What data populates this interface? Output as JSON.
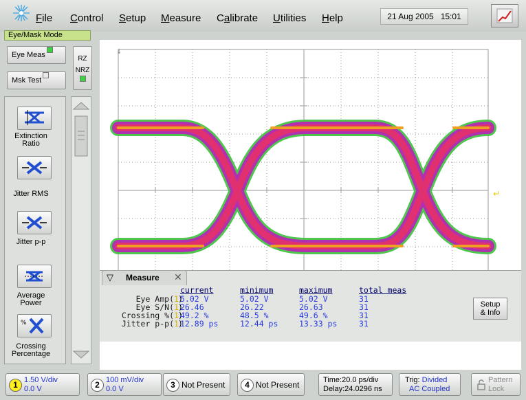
{
  "menu": {
    "items": [
      "File",
      "Control",
      "Setup",
      "Measure",
      "Calibrate",
      "Utilities",
      "Help"
    ],
    "date": "21 Aug 2005",
    "time": "15:01"
  },
  "mode_label": "Eye/Mask Mode",
  "left_buttons": {
    "eye_meas": "Eye Meas",
    "msk_test": "Msk Test",
    "rz": "RZ",
    "nrz": "NRZ"
  },
  "measurements_toolbar": [
    {
      "label_line1": "Extinction",
      "label_line2": "Ratio",
      "icon": "extinction-ratio-icon"
    },
    {
      "label_line1": "Jitter RMS",
      "label_line2": "",
      "icon": "jitter-rms-icon"
    },
    {
      "label_line1": "Jitter p-p",
      "label_line2": "",
      "icon": "jitter-pp-icon"
    },
    {
      "label_line1": "Average",
      "label_line2": "Power",
      "icon": "average-power-icon"
    },
    {
      "label_line1": "Crossing",
      "label_line2": "Percentage",
      "icon": "crossing-percentage-icon"
    }
  ],
  "measure_panel": {
    "tab": "Measure",
    "headers": {
      "current": "current",
      "minimum": "minimum",
      "maximum": "maximum",
      "total": "total meas"
    },
    "rows": [
      {
        "label": "Eye Amp(",
        "current": "5.02 V",
        "minimum": "5.02 V",
        "maximum": "5.02 V",
        "total": "31"
      },
      {
        "label": "Eye S/N(",
        "current": "26.46",
        "minimum": "26.22",
        "maximum": "26.63",
        "total": "31"
      },
      {
        "label": "Crossing %(",
        "current": "49.2 %",
        "minimum": "48.5 %",
        "maximum": "49.6 %",
        "total": "31"
      },
      {
        "label": "Jitter p-p(",
        "current": "12.89 ps",
        "minimum": "12.44 ps",
        "maximum": "13.33 ps",
        "total": "31"
      }
    ],
    "setup_line1": "Setup",
    "setup_line2": "& Info"
  },
  "bottom": {
    "ch1": {
      "num": "1",
      "scale": "1.50 V/div",
      "offset": "0.0 V"
    },
    "ch2": {
      "num": "2",
      "scale": "100 mV/div",
      "offset": "0.0 V"
    },
    "ch3": {
      "num": "3",
      "text": "Not Present"
    },
    "ch4": {
      "num": "4",
      "text": "Not Present"
    },
    "timebase": {
      "time": "Time:20.0 ps/div",
      "delay": "Delay:24.0296 ns"
    },
    "trigger": {
      "label": "Trig:",
      "source": "Divided",
      "coupling": "AC Coupled"
    },
    "pattern": {
      "line1": "Pattern",
      "line2": "Lock"
    }
  },
  "colors": {
    "accent": "#2a3ce0",
    "mode_label": "#c8e28c",
    "ch1": "#ffee20",
    "eye_outer": "#3cc23c",
    "eye_mid": "#d03080",
    "eye_core": "#f0a020"
  }
}
